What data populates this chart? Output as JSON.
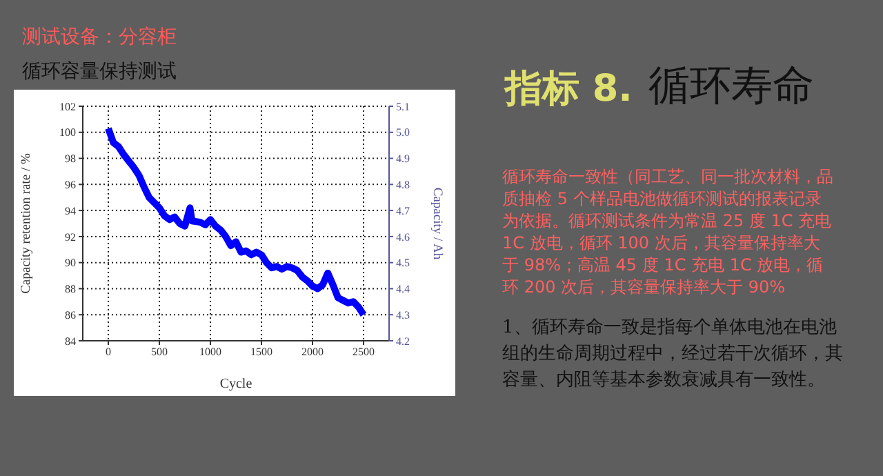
{
  "chart_data": {
    "type": "line",
    "title": "循环容量保持测试",
    "xlabel": "Cycle",
    "ylabel": "Capacity retention rate / %",
    "y2label": "Capacity / Ah",
    "annotations": [
      "测试设备：分容柜",
      "指标 8.",
      "循环寿命",
      "循环寿命一致性（同工艺、同一批次材料，品质抽检 5 个样品电池做循环测试的报表记录为依据。循环测试条件为常温 25 度 1C 充电 1C 放电，循环 100 次后，其容量保持率大于 98%；高温 45 度 1C 充电 1C 放电，循环 200 次后，其容量保持率大于 90%",
      "1、循环寿命一致是指每个单体电池在电池组的生命周期过程中，经过若干次循环，其容量、内阻等基本参数衰减具有一致性。"
    ],
    "x": [
      0,
      50,
      100,
      150,
      200,
      250,
      300,
      350,
      400,
      450,
      500,
      550,
      600,
      650,
      700,
      750,
      800,
      820,
      900,
      950,
      1000,
      1050,
      1100,
      1150,
      1200,
      1250,
      1300,
      1350,
      1400,
      1450,
      1500,
      1550,
      1600,
      1650,
      1700,
      1750,
      1800,
      1850,
      1900,
      1950,
      2000,
      2050,
      2100,
      2150,
      2200,
      2250,
      2300,
      2350,
      2400,
      2450,
      2500
    ],
    "series": [
      {
        "color": "#0000ff",
        "values": [
          100.3,
          99.2,
          98.9,
          98.3,
          97.8,
          97.3,
          96.7,
          95.8,
          95.0,
          94.6,
          94.2,
          93.6,
          93.3,
          93.5,
          93.0,
          92.8,
          94.2,
          93.2,
          93.1,
          92.9,
          93.3,
          92.8,
          92.5,
          92.0,
          91.3,
          91.6,
          90.8,
          90.9,
          90.6,
          90.8,
          90.6,
          90.0,
          89.6,
          89.7,
          89.5,
          89.7,
          89.6,
          89.4,
          88.9,
          88.6,
          88.2,
          88.0,
          88.3,
          89.2,
          88.3,
          87.3,
          87.1,
          86.9,
          87.0,
          86.6,
          86.0
        ]
      }
    ],
    "xlim": [
      -250,
      2750
    ],
    "xticks": [
      0,
      500,
      1000,
      1500,
      2000,
      2500
    ],
    "ylim": [
      84,
      102
    ],
    "yticks": [
      84,
      86,
      88,
      90,
      92,
      94,
      96,
      98,
      100,
      102
    ],
    "y2lim": [
      4.2,
      5.1
    ],
    "y2ticks": [
      4.2,
      4.3,
      4.4,
      4.5,
      4.6,
      4.7,
      4.8,
      4.9,
      {
        "value": 5,
        "label": "5.0"
      },
      5.1
    ],
    "grid": true,
    "marker": "none",
    "line_style": "solid"
  }
}
